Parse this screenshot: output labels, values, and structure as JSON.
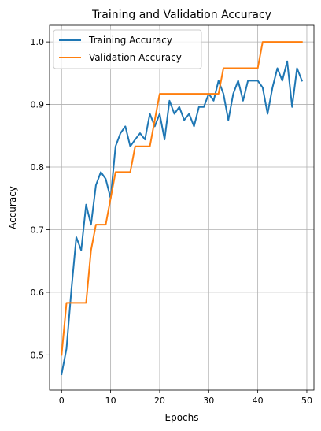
{
  "chart_data": {
    "type": "line",
    "title": "Training and Validation Accuracy",
    "xlabel": "Epochs",
    "ylabel": "Accuracy",
    "xlim": [
      -2.45,
      51.45
    ],
    "ylim": [
      0.4438,
      1.0266
    ],
    "xticks": [
      "0",
      "10",
      "20",
      "30",
      "40",
      "50"
    ],
    "xtick_values": [
      0,
      10,
      20,
      30,
      40,
      50
    ],
    "yticks": [
      "0.5",
      "0.6",
      "0.7",
      "0.8",
      "0.9",
      "1.0"
    ],
    "ytick_values": [
      0.5,
      0.6,
      0.7,
      0.8,
      0.9,
      1.0
    ],
    "grid": true,
    "legend_position": "top-left",
    "x": [
      0,
      1,
      2,
      3,
      4,
      5,
      6,
      7,
      8,
      9,
      10,
      11,
      12,
      13,
      14,
      15,
      16,
      17,
      18,
      19,
      20,
      21,
      22,
      23,
      24,
      25,
      26,
      27,
      28,
      29,
      30,
      31,
      32,
      33,
      34,
      35,
      36,
      37,
      38,
      39,
      40,
      41,
      42,
      43,
      44,
      45,
      46,
      47,
      48,
      49
    ],
    "series": [
      {
        "name": "Training Accuracy",
        "color": "#1f77b4",
        "values": [
          0.469,
          0.51,
          0.604,
          0.688,
          0.667,
          0.74,
          0.708,
          0.771,
          0.792,
          0.781,
          0.75,
          0.833,
          0.854,
          0.865,
          0.833,
          0.844,
          0.854,
          0.844,
          0.885,
          0.865,
          0.885,
          0.844,
          0.906,
          0.885,
          0.896,
          0.875,
          0.885,
          0.865,
          0.896,
          0.896,
          0.917,
          0.906,
          0.938,
          0.917,
          0.875,
          0.917,
          0.938,
          0.906,
          0.938,
          0.938,
          0.938,
          0.927,
          0.885,
          0.927,
          0.958,
          0.938,
          0.969,
          0.896,
          0.958,
          0.938
        ]
      },
      {
        "name": "Validation Accuracy",
        "color": "#ff7f0e",
        "values": [
          0.5,
          0.583,
          0.583,
          0.583,
          0.583,
          0.583,
          0.667,
          0.708,
          0.708,
          0.708,
          0.75,
          0.792,
          0.792,
          0.792,
          0.792,
          0.833,
          0.833,
          0.833,
          0.833,
          0.875,
          0.917,
          0.917,
          0.917,
          0.917,
          0.917,
          0.917,
          0.917,
          0.917,
          0.917,
          0.917,
          0.917,
          0.917,
          0.917,
          0.958,
          0.958,
          0.958,
          0.958,
          0.958,
          0.958,
          0.958,
          0.958,
          1.0,
          1.0,
          1.0,
          1.0,
          1.0,
          1.0,
          1.0,
          1.0,
          1.0
        ]
      }
    ]
  }
}
